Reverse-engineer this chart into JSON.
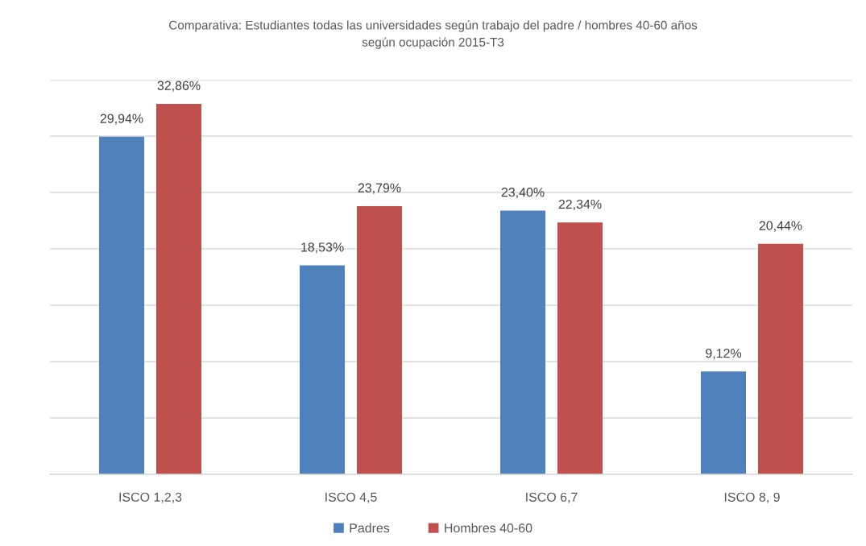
{
  "chart_data": {
    "type": "bar",
    "title": "Comparativa: Estudiantes todas las universidades según trabajo del padre / hombres 40-60 años\nsegún ocupación 2015-T3",
    "categories": [
      "ISCO 1,2,3",
      "ISCO 4,5",
      "ISCO 6,7",
      "ISCO 8, 9"
    ],
    "series": [
      {
        "name": "Padres",
        "color": "#4f81bd",
        "values": [
          29.94,
          18.53,
          23.4,
          9.12
        ],
        "value_labels": [
          "29,94%",
          "18,53%",
          "23,40%",
          "9,12%"
        ]
      },
      {
        "name": "Hombres 40-60",
        "color": "#c0504d",
        "values": [
          32.86,
          23.79,
          22.34,
          20.44
        ],
        "value_labels": [
          "32,86%",
          "23,79%",
          "22,34%",
          "20,44%"
        ]
      }
    ],
    "ylim": [
      0,
      35
    ],
    "yticks": [
      {
        "value": 0,
        "label": null
      },
      {
        "value": 5,
        "label": null
      },
      {
        "value": 10,
        "label": null
      },
      {
        "value": 15,
        "label": null
      },
      {
        "value": 20,
        "label": null
      },
      {
        "value": 25,
        "label": null
      },
      {
        "value": 30,
        "label": null
      },
      {
        "value": 35,
        "label": null
      }
    ],
    "tick_labels": "x",
    "grid": "y",
    "legend": "bottom"
  }
}
